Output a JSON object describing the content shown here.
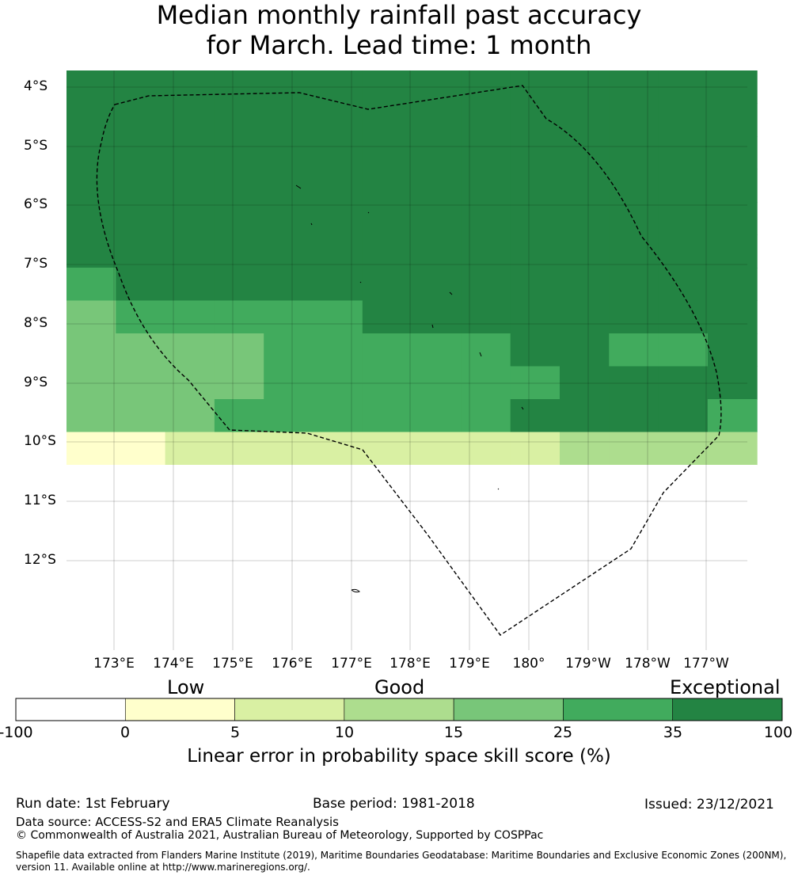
{
  "title": {
    "line1": "Median monthly rainfall past accuracy",
    "line2": "for March. Lead time: 1 month"
  },
  "map": {
    "lat_labels": [
      "4°S",
      "5°S",
      "6°S",
      "7°S",
      "8°S",
      "9°S",
      "10°S",
      "11°S",
      "12°S"
    ],
    "lon_labels": [
      "173°E",
      "174°E",
      "175°E",
      "176°E",
      "177°E",
      "178°E",
      "179°E",
      "180°",
      "179°W",
      "178°W",
      "177°W"
    ],
    "lat_range": [
      -13.5,
      -3.75
    ],
    "lon_range": [
      172.2,
      -176.6
    ],
    "colors": [
      "#ffffff",
      "#ffffcc",
      "#d9f0a3",
      "#addd8e",
      "#78c679",
      "#41ab5d",
      "#238443"
    ],
    "grid_rows": [
      "66666666666666",
      "66666666666666",
      "66666666666666",
      "66666666666666",
      "66666666666666",
      "66666666666666",
      "56666666666666",
      "45555566666666",
      "44445555566556",
      "44445555556666",
      "44455555566665",
      "11222222223333",
      "00000000000000",
      "00000000000000",
      "00000000000000",
      "00000000000000",
      "00000000000000",
      "00000000000000"
    ]
  },
  "colorbar": {
    "categories": [
      "Low",
      "Good",
      "Exceptional"
    ],
    "ticks": [
      "-100",
      "0",
      "5",
      "10",
      "15",
      "25",
      "35",
      "100"
    ],
    "label": "Linear error in probability space skill score (%)"
  },
  "footer": {
    "run_date": "Run date: 1st February",
    "base_period": "Base period: 1981-2018",
    "issued": "Issued: 23/12/2021",
    "data_source": "Data source: ACCESS-S2 and ERA5 Climate Reanalysis",
    "copyright": "© Commonwealth of Australia 2021, Australian Bureau of Meteorology, Supported by COSPPac",
    "shapefile_line1": "Shapefile data extracted from Flanders Marine Institute (2019), Maritime Boundaries Geodatabase: Maritime Boundaries and Exclusive Economic Zones (200NM),",
    "shapefile_line2": "version 11. Available online at http://www.marineregions.org/."
  }
}
